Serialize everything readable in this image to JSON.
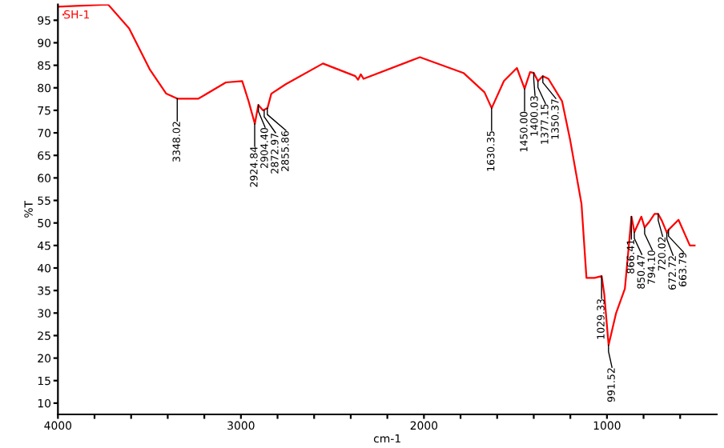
{
  "chart_data": {
    "type": "line",
    "xlabel": "cm-1",
    "ylabel": "%T",
    "series": [
      {
        "name": "SH-1",
        "color": "#ff0000",
        "x": [
          4000,
          3726,
          3611,
          3497,
          3408,
          3348,
          3232,
          3082,
          2993,
          2958,
          2924,
          2905,
          2879,
          2855,
          2834,
          2755,
          2552,
          2375,
          2360,
          2345,
          2330,
          2022,
          1784,
          1669,
          1630,
          1563,
          1492,
          1450,
          1420,
          1400,
          1377,
          1350,
          1320,
          1245,
          1201,
          1139,
          1112,
          1068,
          1029,
          1015,
          991,
          950,
          902,
          866,
          850,
          812,
          794,
          768,
          740,
          720,
          700,
          672,
          663,
          609,
          547,
          521
        ],
        "values": [
          98,
          98.5,
          93.2,
          84,
          78.7,
          77.6,
          77.6,
          81.2,
          81.5,
          77,
          72,
          76.2,
          75,
          75.5,
          78.7,
          80.8,
          85.4,
          82.6,
          81.8,
          83,
          82,
          86.8,
          83.3,
          79,
          75.5,
          81.5,
          84.4,
          79.8,
          83.5,
          83.3,
          81.5,
          82.6,
          82,
          77,
          68.4,
          54.2,
          37.8,
          37.8,
          38.2,
          34.3,
          22.9,
          30,
          35.4,
          51.4,
          48,
          51.4,
          49,
          50.3,
          52,
          52,
          50.5,
          47.8,
          48.5,
          50.7,
          45,
          45
        ]
      }
    ],
    "annotations": [
      {
        "text": "3348.02",
        "x": 3348.02,
        "y": 77.6
      },
      {
        "text": "2924.84",
        "x": 2924.84,
        "y": 72
      },
      {
        "text": "2904.40",
        "x": 2904.4,
        "y": 76.2
      },
      {
        "text": "2872.97",
        "x": 2872.97,
        "y": 75
      },
      {
        "text": "2855.86",
        "x": 2855.86,
        "y": 75.5
      },
      {
        "text": "1630.35",
        "x": 1630.35,
        "y": 75.5
      },
      {
        "text": "1450.00",
        "x": 1450.0,
        "y": 79.8
      },
      {
        "text": "1400.03",
        "x": 1400.03,
        "y": 83.3
      },
      {
        "text": "1377.15",
        "x": 1377.15,
        "y": 81.5
      },
      {
        "text": "1350.37",
        "x": 1350.37,
        "y": 82.6
      },
      {
        "text": "1029.33",
        "x": 1029.33,
        "y": 38.2
      },
      {
        "text": "991.52",
        "x": 991.52,
        "y": 22.9
      },
      {
        "text": "866.41",
        "x": 866.41,
        "y": 51.4
      },
      {
        "text": "850.47",
        "x": 850.47,
        "y": 48
      },
      {
        "text": "794.10",
        "x": 794.1,
        "y": 49
      },
      {
        "text": "720.02",
        "x": 720.02,
        "y": 52
      },
      {
        "text": "672.72",
        "x": 672.72,
        "y": 47.8
      },
      {
        "text": "663.79",
        "x": 663.79,
        "y": 48.5
      }
    ],
    "xlim": [
      4000,
      400
    ],
    "ylim": [
      7.5,
      98.5
    ],
    "xticks": [
      4000,
      {
        "value": 3800,
        "label": null
      },
      {
        "value": 3600,
        "label": null
      },
      {
        "value": 3400,
        "label": null
      },
      {
        "value": 3200,
        "label": null
      },
      3000,
      {
        "value": 2800,
        "label": null
      },
      {
        "value": 2600,
        "label": null
      },
      {
        "value": 2400,
        "label": null
      },
      {
        "value": 2200,
        "label": null
      },
      2000,
      {
        "value": 1800,
        "label": null
      },
      {
        "value": 1600,
        "label": null
      },
      {
        "value": 1400,
        "label": null
      },
      {
        "value": 1200,
        "label": null
      },
      1000,
      {
        "value": 800,
        "label": null
      },
      {
        "value": 600,
        "label": null
      }
    ],
    "yticks": [
      10,
      15,
      20,
      25,
      30,
      35,
      40,
      45,
      50,
      55,
      60,
      65,
      70,
      75,
      80,
      85,
      90,
      95
    ],
    "legend": "top left",
    "grid": false
  }
}
